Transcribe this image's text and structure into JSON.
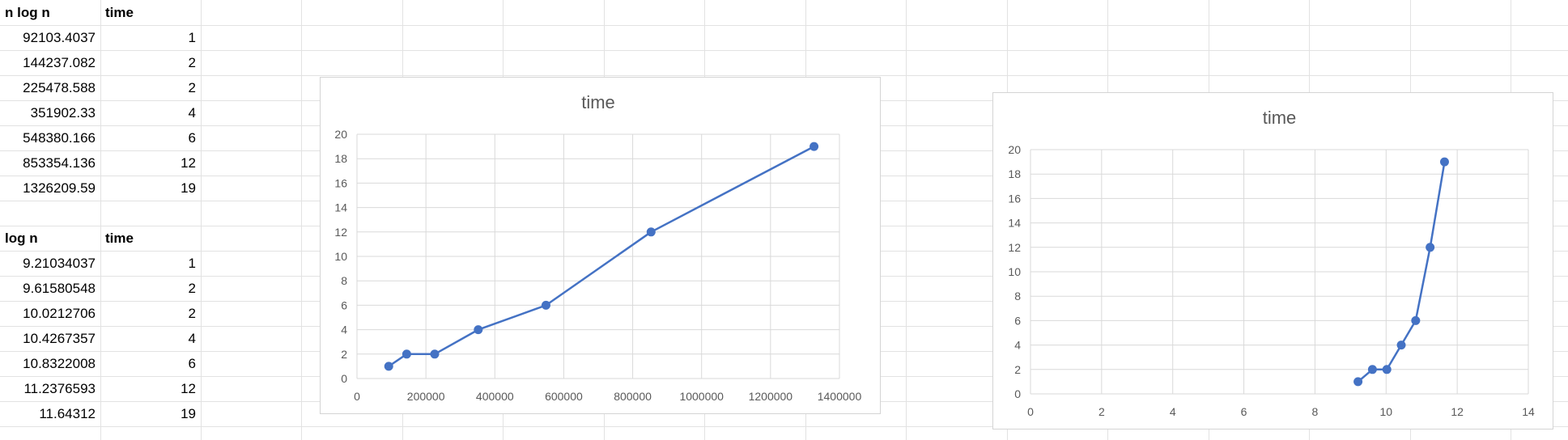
{
  "sheet": {
    "table1": {
      "header": [
        "n log n",
        "time"
      ],
      "rows": [
        [
          "92103.4037",
          "1"
        ],
        [
          "144237.082",
          "2"
        ],
        [
          "225478.588",
          "2"
        ],
        [
          "351902.33",
          "4"
        ],
        [
          "548380.166",
          "6"
        ],
        [
          "853354.136",
          "12"
        ],
        [
          "1326209.59",
          "19"
        ]
      ]
    },
    "table2": {
      "header": [
        "log n",
        "time"
      ],
      "rows": [
        [
          "9.21034037",
          "1"
        ],
        [
          "9.61580548",
          "2"
        ],
        [
          "10.0212706",
          "2"
        ],
        [
          "10.4267357",
          "4"
        ],
        [
          "10.8322008",
          "6"
        ],
        [
          "11.2376593",
          "12"
        ],
        [
          "11.64312",
          "19"
        ]
      ]
    }
  },
  "colors": {
    "series": "#4472c4",
    "gridline": "#d9d9d9",
    "cellborder": "#e2e2e2",
    "text": "#595959"
  },
  "chart_data": [
    {
      "type": "scatter",
      "title": "time",
      "x": [
        92103.4037,
        144237.082,
        225478.588,
        351902.33,
        548380.166,
        853354.136,
        1326209.59
      ],
      "y": [
        1,
        2,
        2,
        4,
        6,
        12,
        19
      ],
      "xlim": [
        0,
        1400000
      ],
      "ylim": [
        0,
        20
      ],
      "xticks": [
        "0",
        "200000",
        "400000",
        "600000",
        "800000",
        "1000000",
        "1200000",
        "1400000"
      ],
      "yticks": [
        "0",
        "2",
        "4",
        "6",
        "8",
        "10",
        "12",
        "14",
        "16",
        "18",
        "20"
      ],
      "grid": true,
      "lines": true
    },
    {
      "type": "scatter",
      "title": "time",
      "x": [
        9.21034037,
        9.61580548,
        10.0212706,
        10.4267357,
        10.8322008,
        11.2376593,
        11.64312
      ],
      "y": [
        1,
        2,
        2,
        4,
        6,
        12,
        19
      ],
      "xlim": [
        0,
        14
      ],
      "ylim": [
        0,
        20
      ],
      "xticks": [
        "0",
        "2",
        "4",
        "6",
        "8",
        "10",
        "12",
        "14"
      ],
      "yticks": [
        "0",
        "2",
        "4",
        "6",
        "8",
        "10",
        "12",
        "14",
        "16",
        "18",
        "20"
      ],
      "grid": true,
      "lines": true
    }
  ]
}
